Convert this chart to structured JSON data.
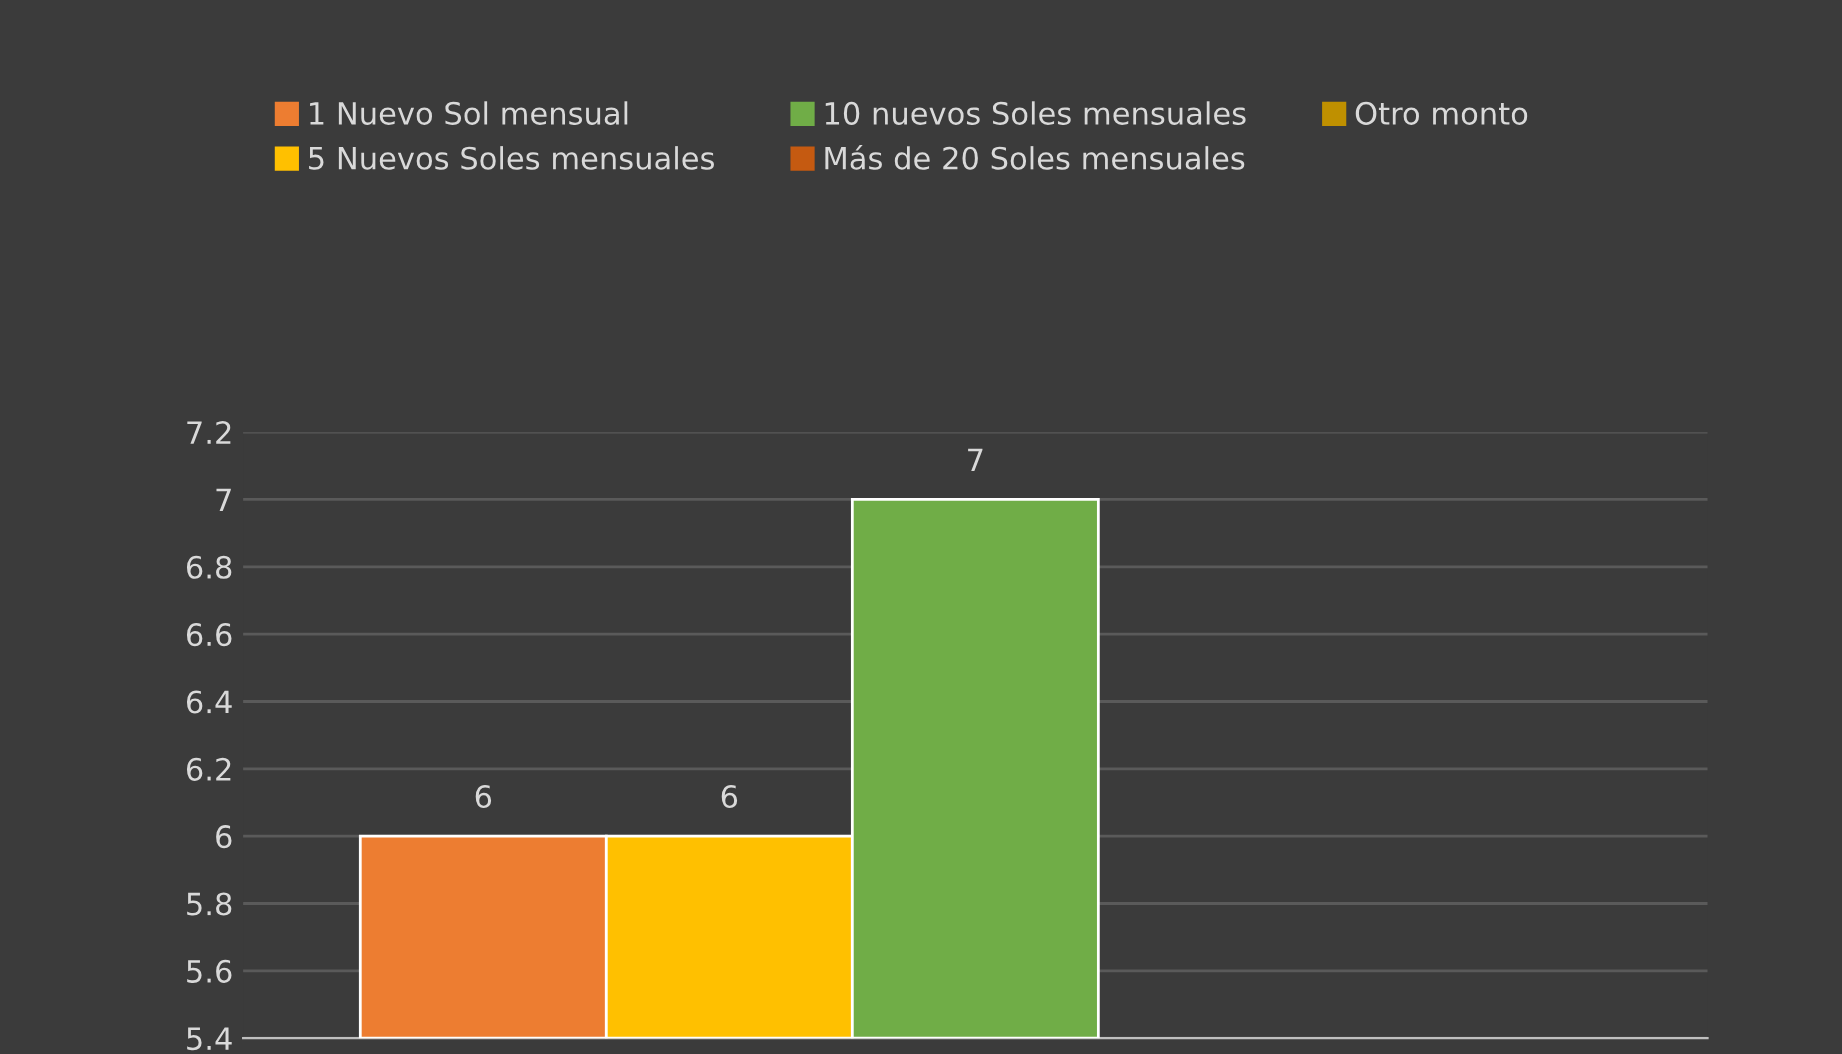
{
  "chart_data": {
    "type": "bar",
    "categories": [
      null
    ],
    "series": [
      {
        "name": "1 Nuevo Sol mensual",
        "color": "#ed7d31",
        "values": [
          6
        ]
      },
      {
        "name": "5 Nuevos Soles mensuales",
        "color": "#ffc000",
        "values": [
          6
        ]
      },
      {
        "name": "10 nuevos Soles mensuales",
        "color": "#70ad47",
        "values": [
          7
        ]
      },
      {
        "name": "Más de 20 Soles mensuales",
        "color": "#c55a11",
        "values": [
          null
        ]
      },
      {
        "name": "Otro monto",
        "color": "#bf9000",
        "values": [
          null
        ]
      }
    ],
    "ylim": [
      5.4,
      7.2
    ],
    "yticks": [
      5.4,
      5.6,
      5.8,
      6,
      6.2,
      6.4,
      6.6,
      6.8,
      7,
      7.2
    ],
    "grid": "y",
    "legend": "top left",
    "data_labels": true
  }
}
